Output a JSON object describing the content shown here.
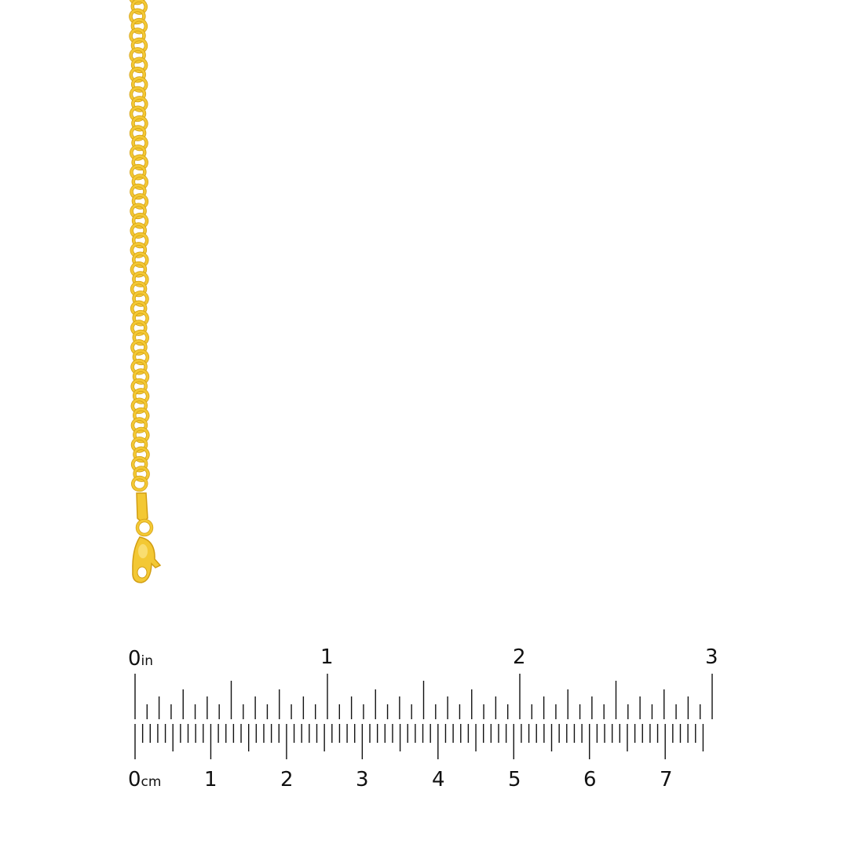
{
  "colors": {
    "gold": "#f3c834",
    "gold_dark": "#d29e12",
    "gold_light": "#fbe58a",
    "ruler": "#111111"
  },
  "ruler": {
    "inch_unit": "in",
    "cm_unit": "cm",
    "inch_labels": [
      "0",
      "1",
      "2",
      "3"
    ],
    "cm_labels": [
      "0",
      "1",
      "2",
      "3",
      "4",
      "5",
      "6",
      "7"
    ]
  }
}
